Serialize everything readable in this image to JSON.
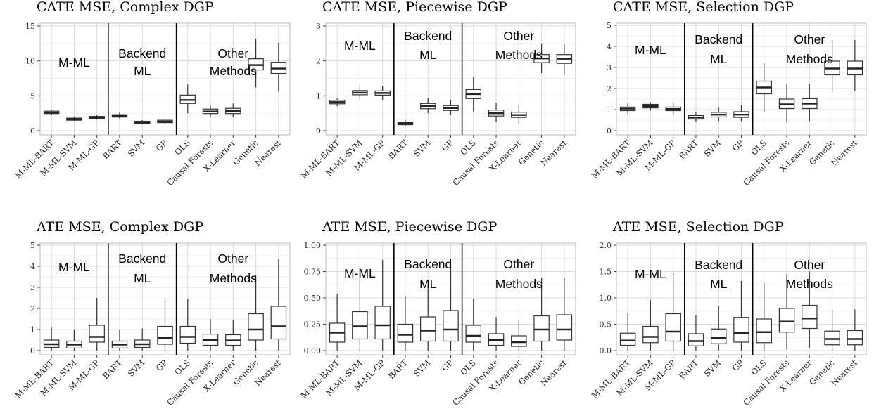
{
  "figure_title": "",
  "group_labels": [
    [
      "M-ML"
    ],
    [
      "Backend",
      "ML"
    ],
    [
      "Other",
      "Methods"
    ]
  ],
  "chart_data": [
    {
      "type": "box",
      "title": "CATE MSE, Complex DGP",
      "xlabel": "",
      "ylabel": "",
      "ylim": [
        -0.6,
        15.4
      ],
      "yticks": [
        "0",
        "5",
        "10",
        "15"
      ],
      "grid": true,
      "categories": [
        "M-ML-BART",
        "M-ML-SVM",
        "M-ML-GP",
        "BART",
        "SVM",
        "GP",
        "OLS",
        "Causal Forests",
        "X-Learner",
        "Genetic",
        "Nearest"
      ],
      "boxes": [
        {
          "whislo": 2.2,
          "q1": 2.45,
          "med": 2.6,
          "q3": 2.8,
          "whishi": 3.0
        },
        {
          "whislo": 1.4,
          "q1": 1.5,
          "med": 1.65,
          "q3": 1.8,
          "whishi": 2.0
        },
        {
          "whislo": 1.6,
          "q1": 1.75,
          "med": 1.9,
          "q3": 2.05,
          "whishi": 2.3
        },
        {
          "whislo": 1.7,
          "q1": 1.95,
          "med": 2.1,
          "q3": 2.3,
          "whishi": 2.6
        },
        {
          "whislo": 0.9,
          "q1": 1.05,
          "med": 1.2,
          "q3": 1.35,
          "whishi": 1.5
        },
        {
          "whislo": 1.0,
          "q1": 1.15,
          "med": 1.3,
          "q3": 1.5,
          "whishi": 1.7
        },
        {
          "whislo": 2.5,
          "q1": 3.9,
          "med": 4.4,
          "q3": 5.1,
          "whishi": 6.6
        },
        {
          "whislo": 2.0,
          "q1": 2.45,
          "med": 2.75,
          "q3": 3.1,
          "whishi": 3.6
        },
        {
          "whislo": 2.0,
          "q1": 2.45,
          "med": 2.8,
          "q3": 3.2,
          "whishi": 3.9
        },
        {
          "whislo": 6.2,
          "q1": 8.7,
          "med": 9.4,
          "q3": 10.3,
          "whishi": 13.2
        },
        {
          "whislo": 5.6,
          "q1": 8.2,
          "med": 8.9,
          "q3": 9.8,
          "whishi": 12.6
        }
      ]
    },
    {
      "type": "box",
      "title": "CATE MSE, Piecewise DGP",
      "xlabel": "",
      "ylabel": "",
      "ylim": [
        -0.12,
        3.08
      ],
      "yticks": [
        "0",
        "1",
        "2",
        "3"
      ],
      "grid": true,
      "categories": [
        "M-ML-BART",
        "M-ML-SVM",
        "M-ML-GP",
        "BART",
        "SVM",
        "GP",
        "OLS",
        "Causal Forests",
        "X-Learner",
        "Genetic",
        "Nearest"
      ],
      "boxes": [
        {
          "whislo": 0.7,
          "q1": 0.77,
          "med": 0.82,
          "q3": 0.87,
          "whishi": 0.93
        },
        {
          "whislo": 0.88,
          "q1": 1.03,
          "med": 1.09,
          "q3": 1.15,
          "whishi": 1.3
        },
        {
          "whislo": 0.88,
          "q1": 1.02,
          "med": 1.08,
          "q3": 1.14,
          "whishi": 1.28
        },
        {
          "whislo": 0.13,
          "q1": 0.17,
          "med": 0.21,
          "q3": 0.24,
          "whishi": 0.3
        },
        {
          "whislo": 0.5,
          "q1": 0.63,
          "med": 0.7,
          "q3": 0.78,
          "whishi": 0.93
        },
        {
          "whislo": 0.45,
          "q1": 0.58,
          "med": 0.65,
          "q3": 0.72,
          "whishi": 0.88
        },
        {
          "whislo": 0.55,
          "q1": 0.92,
          "med": 1.05,
          "q3": 1.18,
          "whishi": 1.55
        },
        {
          "whislo": 0.25,
          "q1": 0.42,
          "med": 0.5,
          "q3": 0.59,
          "whishi": 0.8
        },
        {
          "whislo": 0.22,
          "q1": 0.38,
          "med": 0.45,
          "q3": 0.53,
          "whishi": 0.72
        },
        {
          "whislo": 1.65,
          "q1": 1.95,
          "med": 2.07,
          "q3": 2.18,
          "whishi": 2.5
        },
        {
          "whislo": 1.6,
          "q1": 1.93,
          "med": 2.06,
          "q3": 2.18,
          "whishi": 2.5
        }
      ]
    },
    {
      "type": "box",
      "title": "CATE MSE, Selection DGP",
      "xlabel": "",
      "ylabel": "",
      "ylim": [
        -0.2,
        5.1
      ],
      "yticks": [
        "0",
        "1",
        "2",
        "3",
        "4",
        "5"
      ],
      "grid": true,
      "categories": [
        "M-ML-BART",
        "M-ML-SVM",
        "M-ML-GP",
        "BART",
        "SVM",
        "GP",
        "OLS",
        "Causal Forests",
        "X-Learner",
        "Genetic",
        "Nearest"
      ],
      "boxes": [
        {
          "whislo": 0.8,
          "q1": 0.95,
          "med": 1.05,
          "q3": 1.12,
          "whishi": 1.3
        },
        {
          "whislo": 0.95,
          "q1": 1.08,
          "med": 1.17,
          "q3": 1.25,
          "whishi": 1.35
        },
        {
          "whislo": 0.75,
          "q1": 0.95,
          "med": 1.03,
          "q3": 1.12,
          "whishi": 1.3
        },
        {
          "whislo": 0.4,
          "q1": 0.55,
          "med": 0.62,
          "q3": 0.72,
          "whishi": 0.9
        },
        {
          "whislo": 0.45,
          "q1": 0.65,
          "med": 0.76,
          "q3": 0.87,
          "whishi": 1.1
        },
        {
          "whislo": 0.45,
          "q1": 0.63,
          "med": 0.76,
          "q3": 0.9,
          "whishi": 1.2
        },
        {
          "whislo": 0.9,
          "q1": 1.75,
          "med": 2.05,
          "q3": 2.35,
          "whishi": 3.2
        },
        {
          "whislo": 0.4,
          "q1": 1.05,
          "med": 1.25,
          "q3": 1.5,
          "whishi": 2.2
        },
        {
          "whislo": 0.45,
          "q1": 1.05,
          "med": 1.28,
          "q3": 1.52,
          "whishi": 2.2
        },
        {
          "whislo": 1.9,
          "q1": 2.65,
          "med": 2.95,
          "q3": 3.3,
          "whishi": 4.3
        },
        {
          "whislo": 1.9,
          "q1": 2.65,
          "med": 2.95,
          "q3": 3.3,
          "whishi": 4.3
        }
      ]
    },
    {
      "type": "box",
      "title": "ATE MSE, Complex DGP",
      "xlabel": "",
      "ylabel": "",
      "ylim": [
        -0.2,
        5.1
      ],
      "yticks": [
        "0",
        "1",
        "2",
        "3",
        "4",
        "5"
      ],
      "grid": true,
      "categories": [
        "M-ML-BART",
        "M-ML-SVM",
        "M-ML-GP",
        "BART",
        "SVM",
        "GP",
        "OLS",
        "Causal Forests",
        "X-Learner",
        "Genetic",
        "Nearest"
      ],
      "boxes": [
        {
          "whislo": 0.0,
          "q1": 0.15,
          "med": 0.3,
          "q3": 0.5,
          "whishi": 1.1
        },
        {
          "whislo": 0.0,
          "q1": 0.12,
          "med": 0.28,
          "q3": 0.45,
          "whishi": 1.0
        },
        {
          "whislo": 0.0,
          "q1": 0.4,
          "med": 0.65,
          "q3": 1.2,
          "whishi": 2.5
        },
        {
          "whislo": 0.0,
          "q1": 0.12,
          "med": 0.28,
          "q3": 0.45,
          "whishi": 1.0
        },
        {
          "whislo": 0.0,
          "q1": 0.15,
          "med": 0.3,
          "q3": 0.5,
          "whishi": 1.05
        },
        {
          "whislo": 0.0,
          "q1": 0.3,
          "med": 0.6,
          "q3": 1.15,
          "whishi": 2.45
        },
        {
          "whislo": 0.0,
          "q1": 0.35,
          "med": 0.65,
          "q3": 1.15,
          "whishi": 2.45
        },
        {
          "whislo": 0.0,
          "q1": 0.25,
          "med": 0.5,
          "q3": 0.78,
          "whishi": 1.5
        },
        {
          "whislo": 0.0,
          "q1": 0.25,
          "med": 0.48,
          "q3": 0.75,
          "whishi": 1.45
        },
        {
          "whislo": 0.0,
          "q1": 0.5,
          "med": 1.0,
          "q3": 1.75,
          "whishi": 3.6
        },
        {
          "whislo": 0.0,
          "q1": 0.55,
          "med": 1.15,
          "q3": 2.1,
          "whishi": 4.35
        }
      ]
    },
    {
      "type": "box",
      "title": "ATE MSE, Piecewise DGP",
      "xlabel": "",
      "ylabel": "",
      "ylim": [
        -0.04,
        1.02
      ],
      "yticks": [
        "0.00",
        "0.25",
        "0.50",
        "0.75",
        "1.00"
      ],
      "grid": true,
      "categories": [
        "M-ML-BART",
        "M-ML-SVM",
        "M-ML-GP",
        "BART",
        "SVM",
        "GP",
        "OLS",
        "Causal Forests",
        "X-Learner",
        "Genetic",
        "Nearest"
      ],
      "boxes": [
        {
          "whislo": 0.0,
          "q1": 0.08,
          "med": 0.17,
          "q3": 0.26,
          "whishi": 0.54
        },
        {
          "whislo": 0.0,
          "q1": 0.11,
          "med": 0.23,
          "q3": 0.37,
          "whishi": 0.78
        },
        {
          "whislo": 0.0,
          "q1": 0.11,
          "med": 0.24,
          "q3": 0.42,
          "whishi": 0.86
        },
        {
          "whislo": 0.0,
          "q1": 0.08,
          "med": 0.15,
          "q3": 0.25,
          "whishi": 0.51
        },
        {
          "whislo": 0.0,
          "q1": 0.09,
          "med": 0.19,
          "q3": 0.32,
          "whishi": 0.62
        },
        {
          "whislo": 0.0,
          "q1": 0.09,
          "med": 0.2,
          "q3": 0.38,
          "whishi": 0.8
        },
        {
          "whislo": 0.0,
          "q1": 0.08,
          "med": 0.14,
          "q3": 0.24,
          "whishi": 0.49
        },
        {
          "whislo": 0.0,
          "q1": 0.05,
          "med": 0.1,
          "q3": 0.16,
          "whishi": 0.32
        },
        {
          "whislo": 0.0,
          "q1": 0.04,
          "med": 0.08,
          "q3": 0.14,
          "whishi": 0.29
        },
        {
          "whislo": 0.0,
          "q1": 0.09,
          "med": 0.2,
          "q3": 0.33,
          "whishi": 0.69
        },
        {
          "whislo": 0.0,
          "q1": 0.1,
          "med": 0.2,
          "q3": 0.34,
          "whishi": 0.69
        }
      ]
    },
    {
      "type": "box",
      "title": "ATE MSE, Selection DGP",
      "xlabel": "",
      "ylabel": "",
      "ylim": [
        -0.08,
        2.04
      ],
      "yticks": [
        "0.0",
        "0.5",
        "1.0",
        "1.5",
        "2.0"
      ],
      "grid": true,
      "categories": [
        "M-ML-BART",
        "M-ML-SVM",
        "M-ML-GP",
        "BART",
        "SVM",
        "GP",
        "OLS",
        "Causal Forests",
        "X-Learner",
        "Genetic",
        "Nearest"
      ],
      "boxes": [
        {
          "whislo": 0.0,
          "q1": 0.1,
          "med": 0.19,
          "q3": 0.33,
          "whishi": 0.72
        },
        {
          "whislo": 0.0,
          "q1": 0.15,
          "med": 0.26,
          "q3": 0.46,
          "whishi": 0.96
        },
        {
          "whislo": 0.0,
          "q1": 0.18,
          "med": 0.36,
          "q3": 0.7,
          "whishi": 1.47
        },
        {
          "whislo": 0.0,
          "q1": 0.09,
          "med": 0.18,
          "q3": 0.32,
          "whishi": 0.67
        },
        {
          "whislo": 0.0,
          "q1": 0.13,
          "med": 0.24,
          "q3": 0.41,
          "whishi": 0.84
        },
        {
          "whislo": 0.0,
          "q1": 0.16,
          "med": 0.33,
          "q3": 0.63,
          "whishi": 1.32
        },
        {
          "whislo": 0.0,
          "q1": 0.15,
          "med": 0.35,
          "q3": 0.6,
          "whishi": 1.28
        },
        {
          "whislo": 0.02,
          "q1": 0.35,
          "med": 0.55,
          "q3": 0.8,
          "whishi": 1.45
        },
        {
          "whislo": 0.05,
          "q1": 0.42,
          "med": 0.61,
          "q3": 0.86,
          "whishi": 1.5
        },
        {
          "whislo": 0.0,
          "q1": 0.11,
          "med": 0.22,
          "q3": 0.37,
          "whishi": 0.78
        },
        {
          "whislo": 0.0,
          "q1": 0.11,
          "med": 0.22,
          "q3": 0.38,
          "whishi": 0.78
        }
      ]
    }
  ]
}
